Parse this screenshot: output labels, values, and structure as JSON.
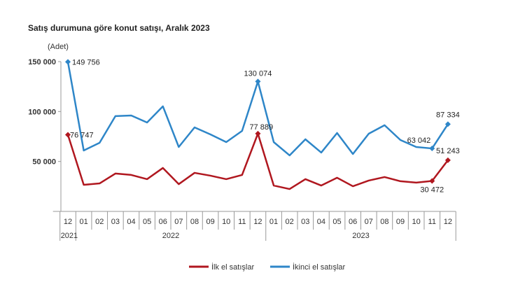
{
  "chart_data": {
    "type": "line",
    "title": "Satış durumuna göre konut satışı, Aralık 2023",
    "ylabel": "(Adet)",
    "ylim": [
      0,
      150000
    ],
    "yticks": [
      "50 000",
      "100 000",
      "150 000"
    ],
    "ytick_values": [
      50000,
      100000,
      150000
    ],
    "categories": [
      "12",
      "01",
      "02",
      "03",
      "04",
      "05",
      "06",
      "07",
      "08",
      "09",
      "10",
      "11",
      "12",
      "01",
      "02",
      "03",
      "04",
      "05",
      "06",
      "07",
      "08",
      "09",
      "10",
      "11",
      "12"
    ],
    "year_groups": [
      {
        "label": "2021",
        "count": 1
      },
      {
        "label": "2022",
        "count": 12
      },
      {
        "label": "2023",
        "count": 12
      }
    ],
    "series": [
      {
        "name": "İlk el satışlar",
        "color": "#b0171f",
        "values": [
          76747,
          26600,
          28000,
          37900,
          36500,
          32300,
          43500,
          27300,
          38600,
          35800,
          32300,
          36500,
          77889,
          25900,
          22400,
          32300,
          25900,
          33700,
          25200,
          30900,
          34400,
          30200,
          28800,
          30472,
          51243
        ]
      },
      {
        "name": "İkinci el satışlar",
        "color": "#2e86c8",
        "values": [
          149756,
          61000,
          68700,
          95400,
          96000,
          89000,
          105200,
          64500,
          84100,
          77100,
          69400,
          80600,
          130074,
          69400,
          56100,
          72200,
          58900,
          78500,
          57500,
          77800,
          86300,
          71500,
          64500,
          63042,
          87334
        ]
      }
    ],
    "data_labels": [
      {
        "series": 1,
        "index": 0,
        "text": "149 756"
      },
      {
        "series": 0,
        "index": 0,
        "text": "76 747"
      },
      {
        "series": 1,
        "index": 12,
        "text": "130 074"
      },
      {
        "series": 0,
        "index": 12,
        "text": "77 889"
      },
      {
        "series": 1,
        "index": 23,
        "text": "63 042"
      },
      {
        "series": 1,
        "index": 24,
        "text": "87 334"
      },
      {
        "series": 0,
        "index": 23,
        "text": "30 472"
      },
      {
        "series": 0,
        "index": 24,
        "text": "51 243"
      }
    ],
    "grid": false,
    "legend": "bottom"
  }
}
